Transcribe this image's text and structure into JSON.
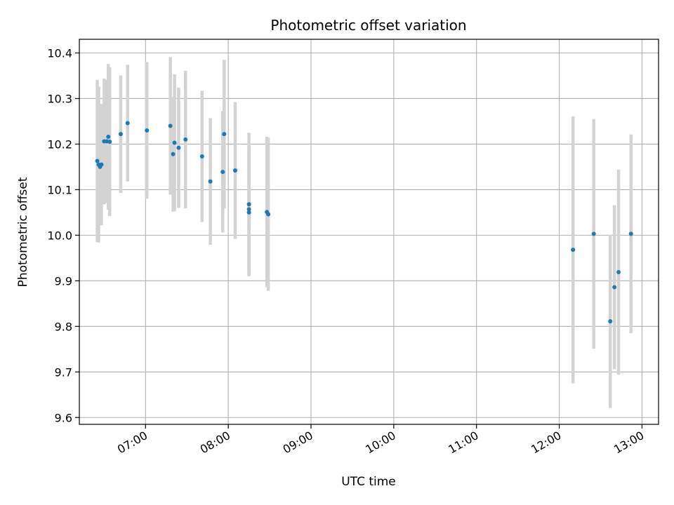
{
  "chart_data": {
    "type": "scatter",
    "title": "Photometric offset variation",
    "xlabel": "UTC time",
    "ylabel": "Photometric offset",
    "grid": true,
    "x_ticks": [
      "07:00",
      "08:00",
      "09:00",
      "10:00",
      "11:00",
      "12:00",
      "13:00"
    ],
    "y_ticks": [
      "9.6",
      "9.7",
      "9.8",
      "9.9",
      "10.0",
      "10.1",
      "10.2",
      "10.3",
      "10.4"
    ],
    "xlim": [
      "06:12",
      "13:12"
    ],
    "ylim": [
      9.585,
      10.43
    ],
    "colors": {
      "point": "#1f77b4",
      "errorbar": "#d3d3d3",
      "grid": "#b0b0b0"
    },
    "series": [
      {
        "points": [
          {
            "x": "06:25",
            "y": 10.163,
            "err": 0.178
          },
          {
            "x": "06:26",
            "y": 10.155,
            "err": 0.171
          },
          {
            "x": "06:27",
            "y": 10.15,
            "err": 0.125
          },
          {
            "x": "06:28",
            "y": 10.155,
            "err": 0.133
          },
          {
            "x": "06:30",
            "y": 10.206,
            "err": 0.138
          },
          {
            "x": "06:32",
            "y": 10.206,
            "err": 0.135
          },
          {
            "x": "06:33",
            "y": 10.216,
            "err": 0.16
          },
          {
            "x": "06:34",
            "y": 10.205,
            "err": 0.163
          },
          {
            "x": "06:42",
            "y": 10.222,
            "err": 0.129
          },
          {
            "x": "06:47",
            "y": 10.246,
            "err": 0.128
          },
          {
            "x": "07:01",
            "y": 10.23,
            "err": 0.15
          },
          {
            "x": "07:18",
            "y": 10.24,
            "err": 0.151
          },
          {
            "x": "07:20",
            "y": 10.178,
            "err": 0.126
          },
          {
            "x": "07:21",
            "y": 10.203,
            "err": 0.15
          },
          {
            "x": "07:24",
            "y": 10.192,
            "err": 0.132
          },
          {
            "x": "07:29",
            "y": 10.21,
            "err": 0.151
          },
          {
            "x": "07:41",
            "y": 10.173,
            "err": 0.144
          },
          {
            "x": "07:47",
            "y": 10.118,
            "err": 0.139
          },
          {
            "x": "07:56",
            "y": 10.139,
            "err": 0.133
          },
          {
            "x": "07:57",
            "y": 10.222,
            "err": 0.163
          },
          {
            "x": "08:05",
            "y": 10.142,
            "err": 0.15
          },
          {
            "x": "08:15",
            "y": 10.068,
            "err": 0.157
          },
          {
            "x": "08:15",
            "y": 10.057,
            "err": 0.14
          },
          {
            "x": "08:15",
            "y": 10.05,
            "err": 0.14
          },
          {
            "x": "08:28",
            "y": 10.051,
            "err": 0.165
          },
          {
            "x": "08:29",
            "y": 10.046,
            "err": 0.168
          },
          {
            "x": "12:10",
            "y": 9.968,
            "err": 0.293
          },
          {
            "x": "12:25",
            "y": 10.003,
            "err": 0.252
          },
          {
            "x": "12:37",
            "y": 9.811,
            "err": 0.19
          },
          {
            "x": "12:40",
            "y": 9.886,
            "err": 0.18
          },
          {
            "x": "12:43",
            "y": 9.919,
            "err": 0.225
          },
          {
            "x": "12:52",
            "y": 10.003,
            "err": 0.218
          }
        ]
      }
    ]
  }
}
